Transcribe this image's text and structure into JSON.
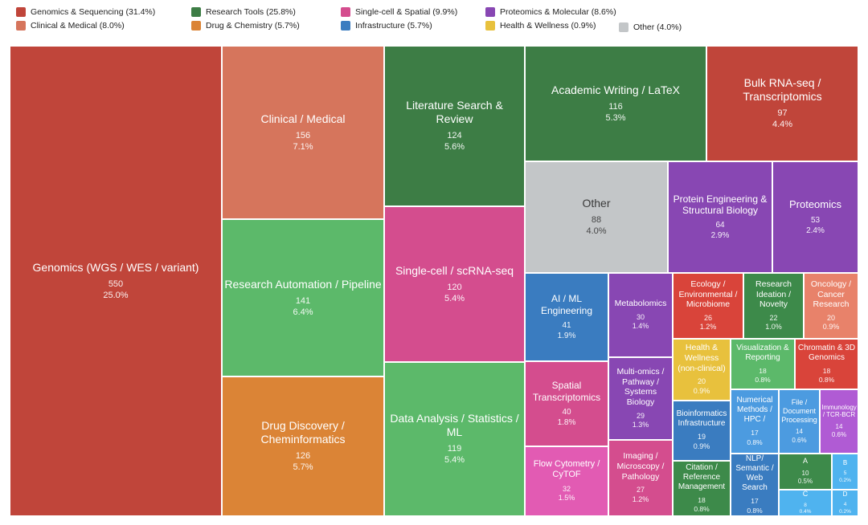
{
  "colors": {
    "genomics": "#c0453a",
    "clinical": "#d6755c",
    "research_tools": "#3d7d45",
    "drug": "#db8436",
    "single_cell": "#d44d8e",
    "infrastructure": "#3a7cc0",
    "proteomics": "#8847b3",
    "health": "#e8c13d",
    "other": "#c3c6c8"
  },
  "legend": [
    {
      "label": "Genomics & Sequencing (31.4%)",
      "color": "#c0453a"
    },
    {
      "label": "Research Tools (25.8%)",
      "color": "#3d7d45"
    },
    {
      "label": "Single-cell & Spatial (9.9%)",
      "color": "#d44d8e"
    },
    {
      "label": "Proteomics & Molecular (8.6%)",
      "color": "#8847b3"
    },
    {
      "label": "Clinical & Medical (8.0%)",
      "color": "#d6755c"
    },
    {
      "label": "Drug & Chemistry (5.7%)",
      "color": "#db8436"
    },
    {
      "label": "Infrastructure (5.7%)",
      "color": "#3a7cc0"
    },
    {
      "label": "Health & Wellness (0.9%)",
      "color": "#e8c13d"
    },
    {
      "label": "Other (4.0%)",
      "color": "#c3c6c8"
    }
  ],
  "chart_data": {
    "type": "treemap",
    "title": "",
    "nodes": [
      {
        "id": "genomics",
        "label": "Genomics (WGS / WES / variant)",
        "value": 550,
        "pct": "25.0%",
        "group": "Genomics & Sequencing"
      },
      {
        "id": "clinical",
        "label": "Clinical / Medical",
        "value": 156,
        "pct": "7.1%",
        "group": "Clinical & Medical"
      },
      {
        "id": "automation",
        "label": "Research Automation / Pipeline",
        "value": 141,
        "pct": "6.4%",
        "group": "Research Tools"
      },
      {
        "id": "drug",
        "label": "Drug Discovery / Cheminformatics",
        "value": 126,
        "pct": "5.7%",
        "group": "Drug & Chemistry"
      },
      {
        "id": "litsearch",
        "label": "Literature Search & Review",
        "value": 124,
        "pct": "5.6%",
        "group": "Research Tools"
      },
      {
        "id": "singlecell",
        "label": "Single-cell / scRNA-seq",
        "value": 120,
        "pct": "5.4%",
        "group": "Single-cell & Spatial"
      },
      {
        "id": "dataanalysis",
        "label": "Data Analysis / Statistics / ML",
        "value": 119,
        "pct": "5.4%",
        "group": "Research Tools"
      },
      {
        "id": "writing",
        "label": "Academic Writing / LaTeX",
        "value": 116,
        "pct": "5.3%",
        "group": "Research Tools"
      },
      {
        "id": "bulkrna",
        "label": "Bulk RNA-seq / Transcriptomics",
        "value": 97,
        "pct": "4.4%",
        "group": "Genomics & Sequencing"
      },
      {
        "id": "other",
        "label": "Other",
        "value": 88,
        "pct": "4.0%",
        "group": "Other"
      },
      {
        "id": "protein",
        "label": "Protein Engineering & Structural Biology",
        "value": 64,
        "pct": "2.9%",
        "group": "Proteomics & Molecular"
      },
      {
        "id": "proteomics",
        "label": "Proteomics",
        "value": 53,
        "pct": "2.4%",
        "group": "Proteomics & Molecular"
      },
      {
        "id": "aiml",
        "label": "AI / ML Engineering",
        "value": 41,
        "pct": "1.9%",
        "group": "Infrastructure"
      },
      {
        "id": "spatial",
        "label": "Spatial Transcriptomics",
        "value": 40,
        "pct": "1.8%",
        "group": "Single-cell & Spatial"
      },
      {
        "id": "flow",
        "label": "Flow Cytometry / CyTOF",
        "value": 32,
        "pct": "1.5%",
        "group": "Single-cell & Spatial"
      },
      {
        "id": "metabolomics",
        "label": "Metabolomics",
        "value": 30,
        "pct": "1.4%",
        "group": "Proteomics & Molecular"
      },
      {
        "id": "multiomics",
        "label": "Multi-omics / Pathway / Systems Biology",
        "value": 29,
        "pct": "1.3%",
        "group": "Proteomics & Molecular"
      },
      {
        "id": "imaging",
        "label": "Imaging / Microscopy / Pathology",
        "value": 27,
        "pct": "1.2%",
        "group": "Single-cell & Spatial"
      },
      {
        "id": "ecology",
        "label": "Ecology / Environmental / Microbiome",
        "value": 26,
        "pct": "1.2%",
        "group": "Genomics & Sequencing"
      },
      {
        "id": "ideation",
        "label": "Research Ideation / Novelty",
        "value": 22,
        "pct": "1.0%",
        "group": "Research Tools"
      },
      {
        "id": "oncology",
        "label": "Oncology / Cancer Research",
        "value": 20,
        "pct": "0.9%",
        "group": "Clinical & Medical"
      },
      {
        "id": "health",
        "label": "Health & Wellness (non-clinical)",
        "value": 20,
        "pct": "0.9%",
        "group": "Health & Wellness"
      },
      {
        "id": "bioinfra",
        "label": "Bioinformatics Infrastructure",
        "value": 19,
        "pct": "0.9%",
        "group": "Infrastructure"
      },
      {
        "id": "viz",
        "label": "Visualization & Reporting",
        "value": 18,
        "pct": "0.8%",
        "group": "Research Tools"
      },
      {
        "id": "chromatin",
        "label": "Chromatin & 3D Genomics",
        "value": 18,
        "pct": "0.8%",
        "group": "Genomics & Sequencing"
      },
      {
        "id": "citation",
        "label": "Citation / Reference Management",
        "value": 18,
        "pct": "0.8%",
        "group": "Research Tools"
      },
      {
        "id": "numerical",
        "label": "Numerical Methods / HPC /",
        "value": 17,
        "pct": "0.8%",
        "group": "Infrastructure"
      },
      {
        "id": "nlp",
        "label": "NLP/ Semantic / Web Search",
        "value": 17,
        "pct": "0.8%",
        "group": "Infrastructure"
      },
      {
        "id": "fileproc",
        "label": "File / Document Processing",
        "value": 14,
        "pct": "0.6%",
        "group": "Infrastructure"
      },
      {
        "id": "immunology",
        "label": "Immunology / TCR-BCR",
        "value": 14,
        "pct": "0.6%",
        "group": "Proteomics & Molecular"
      },
      {
        "id": "a",
        "label": "A",
        "value": 10,
        "pct": "0.5%",
        "group": "Research Tools"
      },
      {
        "id": "b",
        "label": "B",
        "value": 5,
        "pct": "0.2%",
        "group": "Infrastructure"
      },
      {
        "id": "c",
        "label": "C",
        "value": 8,
        "pct": "0.4%",
        "group": "Infrastructure"
      },
      {
        "id": "d",
        "label": "D",
        "value": 4,
        "pct": "0.2%",
        "group": "Infrastructure"
      }
    ]
  }
}
